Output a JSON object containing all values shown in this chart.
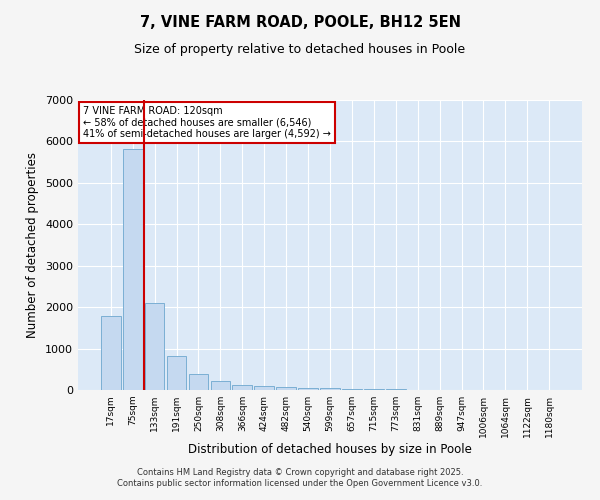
{
  "title1": "7, VINE FARM ROAD, POOLE, BH12 5EN",
  "title2": "Size of property relative to detached houses in Poole",
  "xlabel": "Distribution of detached houses by size in Poole",
  "ylabel": "Number of detached properties",
  "categories": [
    "17sqm",
    "75sqm",
    "133sqm",
    "191sqm",
    "250sqm",
    "308sqm",
    "366sqm",
    "424sqm",
    "482sqm",
    "540sqm",
    "599sqm",
    "657sqm",
    "715sqm",
    "773sqm",
    "831sqm",
    "889sqm",
    "947sqm",
    "1006sqm",
    "1064sqm",
    "1122sqm",
    "1180sqm"
  ],
  "values": [
    1780,
    5820,
    2090,
    820,
    380,
    220,
    130,
    90,
    70,
    55,
    50,
    30,
    20,
    15,
    10,
    8,
    5,
    4,
    3,
    2,
    2
  ],
  "bar_color": "#c5d9f0",
  "bar_edge_color": "#7bafd4",
  "vline_color": "#cc0000",
  "vline_pos": 1.5,
  "annotation_title": "7 VINE FARM ROAD: 120sqm",
  "annotation_line1": "← 58% of detached houses are smaller (6,546)",
  "annotation_line2": "41% of semi-detached houses are larger (4,592) →",
  "annotation_box_color": "#cc0000",
  "ylim": [
    0,
    7000
  ],
  "yticks": [
    0,
    1000,
    2000,
    3000,
    4000,
    5000,
    6000,
    7000
  ],
  "bg_color": "#dce9f7",
  "grid_color": "#ffffff",
  "fig_bg_color": "#f5f5f5",
  "footer1": "Contains HM Land Registry data © Crown copyright and database right 2025.",
  "footer2": "Contains public sector information licensed under the Open Government Licence v3.0."
}
